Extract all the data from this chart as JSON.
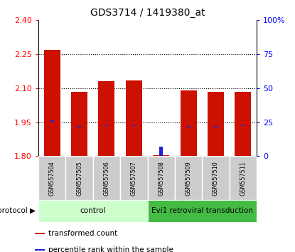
{
  "title": "GDS3714 / 1419380_at",
  "samples": [
    "GSM557504",
    "GSM557505",
    "GSM557506",
    "GSM557507",
    "GSM557508",
    "GSM557509",
    "GSM557510",
    "GSM557511"
  ],
  "red_values": [
    2.27,
    2.085,
    2.13,
    2.135,
    1.805,
    2.09,
    2.085,
    2.085
  ],
  "blue_bot": [
    1.953,
    1.928,
    1.933,
    1.932,
    1.801,
    1.928,
    1.927,
    1.932
  ],
  "blue_top": [
    1.958,
    1.933,
    1.938,
    1.937,
    1.843,
    1.933,
    1.932,
    1.937
  ],
  "ymin": 1.8,
  "ymax": 2.4,
  "yticks_left": [
    1.8,
    1.95,
    2.1,
    2.25,
    2.4
  ],
  "yticks_right": [
    0,
    25,
    50,
    75,
    100
  ],
  "bar_width": 0.6,
  "red_color": "#cc1100",
  "blue_color": "#2222cc",
  "control_color": "#ccffcc",
  "transduction_color": "#44bb44",
  "sample_box_color": "#cccccc",
  "grid_color": "#000000",
  "control_label": "control",
  "transduction_label": "Evi1 retroviral transduction",
  "protocol_text": "protocol",
  "legend_items": [
    {
      "label": "transformed count",
      "color": "#cc1100"
    },
    {
      "label": "percentile rank within the sample",
      "color": "#2222cc"
    }
  ]
}
